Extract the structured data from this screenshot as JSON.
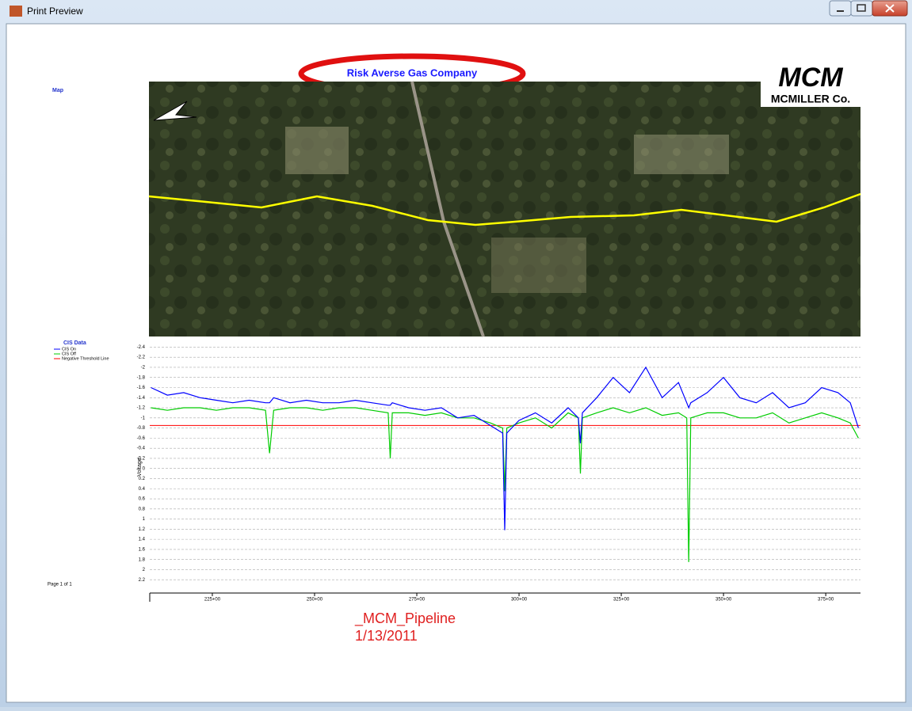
{
  "window": {
    "title": "Print Preview"
  },
  "report": {
    "title": "Risk Averse Gas Company",
    "map_label": "Map",
    "logo": {
      "top": "MCM",
      "bottom": "MCMILLER Co."
    },
    "page": "Page 1 of 1",
    "footer": {
      "name": "_MCM_Pipeline",
      "date": "1/13/2011"
    }
  },
  "chart_data": {
    "type": "line",
    "legend_title": "CIS Data",
    "y_label": "Voltage",
    "y_inverted": true,
    "grid": true,
    "x": [
      21000,
      21400,
      21800,
      22200,
      22600,
      23000,
      23400,
      23800,
      23900,
      24000,
      24400,
      24800,
      25200,
      25600,
      26000,
      26400,
      26800,
      26850,
      26900,
      27300,
      27700,
      28100,
      28500,
      28900,
      29300,
      29600,
      29650,
      29700,
      30000,
      30400,
      30800,
      31200,
      31450,
      31500,
      31550,
      31900,
      32300,
      32700,
      33100,
      33500,
      33900,
      34100,
      34150,
      34200,
      34600,
      35000,
      35400,
      35800,
      36200,
      36600,
      37000,
      37400,
      37800,
      38100,
      38300
    ],
    "series": [
      {
        "name": "CIS On",
        "color": "#0000ff",
        "values": [
          -1.6,
          -1.45,
          -1.5,
          -1.4,
          -1.35,
          -1.3,
          -1.35,
          -1.3,
          -1.3,
          -1.4,
          -1.3,
          -1.35,
          -1.3,
          -1.3,
          -1.35,
          -1.3,
          -1.25,
          -1.25,
          -1.3,
          -1.2,
          -1.15,
          -1.2,
          -1.0,
          -1.05,
          -0.85,
          -0.7,
          1.22,
          -0.7,
          -0.95,
          -1.1,
          -0.9,
          -1.2,
          -1.0,
          -0.5,
          -1.1,
          -1.4,
          -1.8,
          -1.5,
          -2.0,
          -1.4,
          -1.7,
          -1.3,
          -1.2,
          -1.3,
          -1.5,
          -1.8,
          -1.4,
          -1.3,
          -1.5,
          -1.2,
          -1.3,
          -1.6,
          -1.5,
          -1.3,
          -0.8
        ]
      },
      {
        "name": "CIS Off",
        "color": "#00cc00",
        "values": [
          -1.2,
          -1.15,
          -1.2,
          -1.2,
          -1.15,
          -1.2,
          -1.2,
          -1.15,
          -0.3,
          -1.15,
          -1.2,
          -1.2,
          -1.15,
          -1.2,
          -1.2,
          -1.15,
          -1.1,
          -0.2,
          -1.1,
          -1.1,
          -1.05,
          -1.1,
          -1.0,
          -1.0,
          -0.9,
          -0.8,
          0.45,
          -0.8,
          -0.9,
          -1.0,
          -0.8,
          -1.1,
          -1.0,
          0.1,
          -1.0,
          -1.1,
          -1.2,
          -1.1,
          -1.2,
          -1.05,
          -1.1,
          -1.0,
          1.85,
          -1.0,
          -1.1,
          -1.1,
          -1.0,
          -1.0,
          -1.1,
          -0.9,
          -1.0,
          -1.1,
          -1.0,
          -0.9,
          -0.6
        ]
      }
    ],
    "threshold": {
      "name": "Negative Threshold Line",
      "color": "#ff0000",
      "value": -0.85
    },
    "xlim": [
      20970,
      38350
    ],
    "xticks": [
      {
        "value": 22500,
        "label": "225+00"
      },
      {
        "value": 25000,
        "label": "250+00"
      },
      {
        "value": 27500,
        "label": "275+00"
      },
      {
        "value": 30000,
        "label": "300+00"
      },
      {
        "value": 32500,
        "label": "325+00"
      },
      {
        "value": 35000,
        "label": "350+00"
      },
      {
        "value": 37500,
        "label": "375+00"
      }
    ],
    "ylim": [
      -2.5,
      2.4
    ],
    "yticks": [
      -2.4,
      -2.2,
      -2,
      -1.8,
      -1.6,
      -1.4,
      -1.2,
      -1,
      -0.8,
      -0.6,
      -0.4,
      -0.2,
      0,
      0.2,
      0.4,
      0.6,
      0.8,
      1,
      1.2,
      1.4,
      1.6,
      1.8,
      2,
      2.2
    ]
  }
}
